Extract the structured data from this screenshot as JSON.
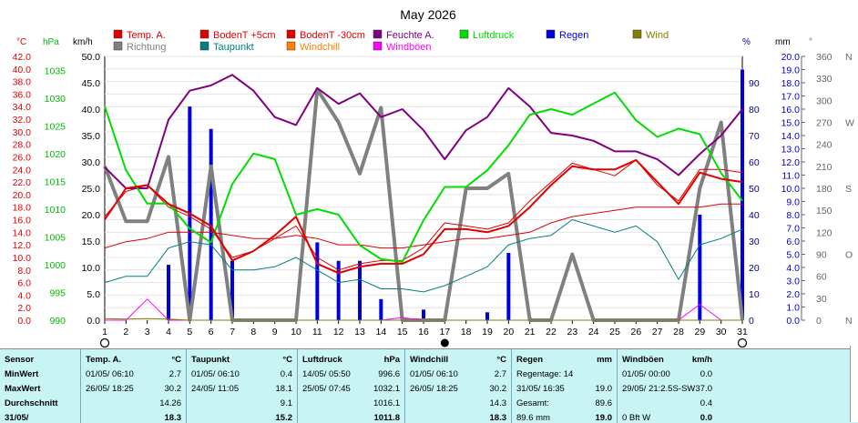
{
  "chart_data": {
    "type": "line",
    "title": "May 2026",
    "x": [
      1,
      2,
      3,
      4,
      5,
      6,
      7,
      8,
      9,
      10,
      11,
      12,
      13,
      14,
      15,
      16,
      17,
      18,
      19,
      20,
      21,
      22,
      23,
      24,
      25,
      26,
      27,
      28,
      29,
      30,
      31
    ],
    "xlim": [
      1,
      31
    ],
    "axes": {
      "temp": {
        "unit": "°C",
        "range": [
          0,
          42
        ],
        "ticks": [
          "0.0",
          "2.0",
          "4.0",
          "6.0",
          "8.0",
          "10.0",
          "12.0",
          "14.0",
          "16.0",
          "18.0",
          "20.0",
          "22.0",
          "24.0",
          "26.0",
          "28.0",
          "30.0",
          "32.0",
          "34.0",
          "36.0",
          "38.0",
          "40.0",
          "42.0"
        ]
      },
      "pressure": {
        "unit": "hPa",
        "range": [
          990,
          1037.5
        ],
        "ticks": [
          "990",
          "995",
          "1000",
          "1005",
          "1010",
          "1015",
          "1020",
          "1025",
          "1030",
          "1035"
        ]
      },
      "wind": {
        "unit": "km/h",
        "range": [
          0,
          50
        ],
        "ticks": [
          "0.0",
          "5.0",
          "10.0",
          "15.0",
          "20.0",
          "25.0",
          "30.0",
          "35.0",
          "40.0",
          "45.0",
          "50.0"
        ]
      },
      "humidity": {
        "unit": "%",
        "range": [
          0,
          100
        ],
        "ticks": [
          "0",
          "10",
          "20",
          "30",
          "40",
          "50",
          "60",
          "70",
          "80",
          "90"
        ]
      },
      "rain": {
        "unit": "mm",
        "range": [
          0,
          20
        ],
        "ticks": [
          "0.0",
          "1.0",
          "2.0",
          "3.0",
          "4.0",
          "5.0",
          "6.0",
          "7.0",
          "8.0",
          "9.0",
          "10.0",
          "11.0",
          "12.0",
          "13.0",
          "14.0",
          "15.0",
          "16.0",
          "17.0",
          "18.0",
          "19.0",
          "20.0"
        ]
      },
      "direction": {
        "unit": "°",
        "range": [
          0,
          360
        ],
        "ticks": [
          {
            "v": 0,
            "l": "0",
            "c": "N"
          },
          {
            "v": 30,
            "l": "30"
          },
          {
            "v": 60,
            "l": "60"
          },
          {
            "v": 90,
            "l": "90",
            "c": "O"
          },
          {
            "v": 120,
            "l": "120"
          },
          {
            "v": 150,
            "l": "150"
          },
          {
            "v": 180,
            "l": "180",
            "c": "S"
          },
          {
            "v": 210,
            "l": "210"
          },
          {
            "v": 240,
            "l": "240"
          },
          {
            "v": 270,
            "l": "270",
            "c": "W"
          },
          {
            "v": 300,
            "l": "300"
          },
          {
            "v": 330,
            "l": "330"
          },
          {
            "v": 360,
            "l": "360",
            "c": "N"
          }
        ]
      }
    },
    "legend": [
      {
        "name": "Temp. A.",
        "color": "#e00000"
      },
      {
        "name": "BodenT +5cm",
        "color": "#e00000"
      },
      {
        "name": "BodenT -30cm",
        "color": "#e00000"
      },
      {
        "name": "Feuchte A.",
        "color": "#800080"
      },
      {
        "name": "Luftdruck",
        "color": "#00dd00"
      },
      {
        "name": "Regen",
        "color": "#0000dd"
      },
      {
        "name": "Wind",
        "color": "#808000"
      },
      {
        "name": "Richtung",
        "color": "#808080"
      },
      {
        "name": "Taupunkt",
        "color": "#008080"
      },
      {
        "name": "Windchill",
        "color": "#ff8000"
      },
      {
        "name": "Windböen",
        "color": "#ff00ff"
      }
    ],
    "series": [
      {
        "name": "Temp. A.",
        "axis": "temp",
        "color": "#e00000",
        "width": 2,
        "values": [
          16.0,
          21.0,
          21.5,
          18.5,
          17.0,
          15.0,
          9.5,
          11.0,
          13.5,
          16.5,
          9.0,
          7.5,
          8.5,
          9.0,
          9.0,
          10.5,
          14.5,
          14.5,
          14.0,
          15.0,
          18.0,
          21.5,
          24.5,
          24.0,
          24.0,
          25.5,
          22.0,
          18.5,
          23.5,
          22.5,
          22.0
        ]
      },
      {
        "name": "BodenT +5cm",
        "axis": "temp",
        "color": "#e00000",
        "width": 1,
        "values": [
          16.5,
          20.5,
          21.5,
          18.0,
          16.5,
          14.5,
          10.0,
          11.0,
          13.0,
          15.0,
          10.0,
          8.0,
          9.0,
          9.5,
          9.5,
          11.5,
          15.5,
          15.0,
          14.5,
          15.5,
          19.0,
          22.0,
          25.0,
          24.0,
          23.0,
          25.5,
          21.5,
          19.0,
          24.0,
          24.0,
          23.5
        ]
      },
      {
        "name": "BodenT -30cm",
        "axis": "temp",
        "color": "#e00000",
        "width": 1,
        "values": [
          11.5,
          12.5,
          13.0,
          14.0,
          14.0,
          14.0,
          13.5,
          13.0,
          13.0,
          13.5,
          13.0,
          12.0,
          12.0,
          11.5,
          11.5,
          12.0,
          12.5,
          13.0,
          13.0,
          13.5,
          14.0,
          15.5,
          16.5,
          17.0,
          17.5,
          18.0,
          18.0,
          18.0,
          18.0,
          18.5,
          18.5
        ]
      },
      {
        "name": "Feuchte A.",
        "axis": "humidity",
        "color": "#800080",
        "width": 2,
        "values": [
          58,
          50,
          50,
          76,
          87,
          89,
          93,
          87,
          77,
          74,
          88,
          82,
          86,
          77,
          80,
          72,
          61,
          72,
          77,
          88,
          81,
          71,
          70,
          68,
          64,
          64,
          61,
          55,
          63,
          70,
          80
        ]
      },
      {
        "name": "Luftdruck",
        "axis": "pressure",
        "color": "#00dd00",
        "width": 2,
        "values": [
          1028.5,
          1017.0,
          1011.0,
          1011.0,
          1006.5,
          1004.0,
          1014.5,
          1020.0,
          1019.0,
          1009.0,
          1010.0,
          1009.0,
          1003.5,
          1001.0,
          1000.5,
          1008.0,
          1014.0,
          1014.0,
          1017.0,
          1021.5,
          1027.0,
          1028.0,
          1027.0,
          1029.0,
          1031.0,
          1026.0,
          1023.0,
          1024.5,
          1023.5,
          1016.5,
          1011.5
        ]
      },
      {
        "name": "Taupunkt",
        "axis": "temp",
        "color": "#008080",
        "width": 1,
        "values": [
          6.0,
          7.0,
          7.0,
          11.5,
          12.5,
          12.0,
          8.0,
          8.0,
          8.5,
          10.0,
          8.0,
          6.0,
          6.5,
          5.0,
          5.0,
          4.5,
          5.5,
          7.0,
          8.5,
          12.0,
          13.0,
          13.5,
          16.0,
          15.0,
          14.0,
          15.0,
          12.5,
          6.5,
          12.0,
          13.0,
          14.5
        ]
      },
      {
        "name": "Windböen",
        "axis": "wind",
        "color": "#ff00ff",
        "width": 1,
        "values": [
          0.0,
          0.0,
          4.0,
          0.0,
          0.0,
          0.0,
          0.0,
          0.0,
          0.0,
          0.0,
          0.0,
          0.0,
          0.0,
          0.0,
          0.5,
          0.0,
          0.0,
          0.0,
          0.0,
          0.0,
          0.0,
          0.0,
          0.0,
          0.0,
          0.0,
          0.0,
          0.0,
          0.0,
          3.0,
          0.0,
          0.0
        ]
      },
      {
        "name": "Wind",
        "axis": "wind",
        "color": "#808000",
        "width": 1,
        "values": [
          0.3,
          0.2,
          0.3,
          0.2,
          0.0,
          0.0,
          0.0,
          0.0,
          0.0,
          0.0,
          0.0,
          0.0,
          0.0,
          0.0,
          0.0,
          0.0,
          0.0,
          0.0,
          0.0,
          0.0,
          0.0,
          0.0,
          0.0,
          0.0,
          0.0,
          0.0,
          0.0,
          0.0,
          0.0,
          0.0,
          0.0
        ]
      },
      {
        "name": "Richtung",
        "axis": "direction",
        "color": "#808080",
        "width": 4,
        "values": [
          210,
          135,
          135,
          223,
          0,
          210,
          0,
          0,
          0,
          0,
          315,
          270,
          200,
          290,
          0,
          0,
          0,
          180,
          180,
          200,
          0,
          0,
          90,
          0,
          0,
          0,
          0,
          0,
          180,
          270,
          0
        ]
      }
    ],
    "rain": {
      "name": "Regen",
      "axis": "rain",
      "color": "#0000dd",
      "values": [
        0.0,
        0.0,
        0.0,
        4.2,
        16.2,
        14.5,
        4.5,
        0.0,
        0.0,
        0.0,
        5.9,
        4.5,
        4.5,
        1.6,
        0.0,
        0.8,
        0.0,
        0.0,
        0.6,
        5.1,
        0.2,
        0.0,
        0.0,
        0.0,
        0.0,
        0.0,
        0.0,
        0.0,
        8.0,
        0.0,
        19.0
      ]
    },
    "moon": [
      {
        "day": 1,
        "phase": "first-quarter"
      },
      {
        "day": 17,
        "phase": "new"
      },
      {
        "day": 31,
        "phase": "last-quarter"
      }
    ]
  },
  "stats": [
    {
      "header": "Sensor",
      "unit": "",
      "rows": [
        [
          "MinWert",
          ""
        ],
        [
          "MaxWert",
          ""
        ],
        [
          "Durchschnitt",
          ""
        ],
        [
          "31/05/",
          ""
        ]
      ]
    },
    {
      "header": "Temp. A.",
      "unit": "°C",
      "rows": [
        [
          "01/05/ 06:10",
          "2.7"
        ],
        [
          "26/05/ 18:25",
          "30.2"
        ],
        [
          "",
          "14.26"
        ],
        [
          "",
          "18.3"
        ]
      ]
    },
    {
      "header": "Taupunkt",
      "unit": "°C",
      "rows": [
        [
          "01/05/ 06:10",
          "0.4"
        ],
        [
          "24/05/ 11:05",
          "18.1"
        ],
        [
          "",
          "9.1"
        ],
        [
          "",
          "15.2"
        ]
      ]
    },
    {
      "header": "Luftdruck",
      "unit": "hPa",
      "rows": [
        [
          "14/05/ 05:50",
          "996.6"
        ],
        [
          "25/05/ 07:45",
          "1032.1"
        ],
        [
          "",
          "1016.1"
        ],
        [
          "",
          "1011.8"
        ]
      ]
    },
    {
      "header": "Windchill",
      "unit": "°C",
      "rows": [
        [
          "01/05/ 06:10",
          "2.7"
        ],
        [
          "26/05/ 18:25",
          "30.2"
        ],
        [
          "",
          "14.3"
        ],
        [
          "",
          "18.3"
        ]
      ]
    },
    {
      "header": "Regen",
      "unit": "mm",
      "rows": [
        [
          "Regentage: 14",
          ""
        ],
        [
          "31/05/ 16:35",
          "19.0"
        ],
        [
          "Gesamt:",
          "89.6"
        ],
        [
          "89.6 mm",
          "19.0"
        ]
      ]
    },
    {
      "header": "Windböen",
      "unit": "km/h",
      "rows": [
        [
          "01/05/ 00:00",
          "0.0"
        ],
        [
          "29/05/ 21:2.5S-SW",
          "37.0"
        ],
        [
          "",
          "0.4"
        ],
        [
          "0 Bft W",
          "0.0"
        ]
      ]
    }
  ]
}
